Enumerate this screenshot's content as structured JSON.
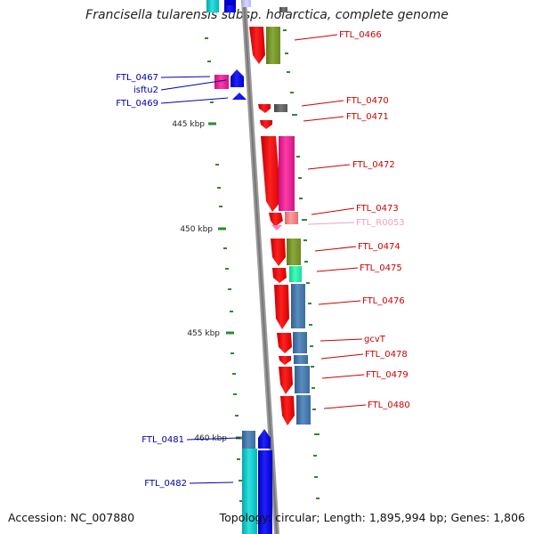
{
  "title": "Francisella tularensis subsp. holarctica, complete genome",
  "footer": {
    "accession": "Accession: NC_007880",
    "topology": "Topology: circular; Length: 1,895,994 bp; Genes: 1,806"
  },
  "scale_labels": [
    "445 kbp",
    "450 kbp",
    "455 kbp",
    "460 kbp"
  ],
  "colors": {
    "backbone": "#888888",
    "label_red": "#cc0000",
    "label_blue": "#0000aa",
    "label_pink": "#f0a0c0",
    "tick_green": "#2e8b2e"
  },
  "genes": [
    {
      "label": "FTL_0466",
      "strand": "+",
      "color": "#ff0000"
    },
    {
      "label": "FTL_0467",
      "strand": "-",
      "color": "#ff1493"
    },
    {
      "label": "isftu2",
      "strand": "-",
      "color": "#0000ff"
    },
    {
      "label": "FTL_0469",
      "strand": "-",
      "color": "#0000ff"
    },
    {
      "label": "FTL_0470",
      "strand": "+",
      "color": "#ff0000"
    },
    {
      "label": "FTL_0471",
      "strand": "+",
      "color": "#ff0000"
    },
    {
      "label": "FTL_0472",
      "strand": "+",
      "color": "#ff0000"
    },
    {
      "label": "FTL_0473",
      "strand": "+",
      "color": "#ff0000"
    },
    {
      "label": "FTL_R0053",
      "strand": "+",
      "color": "#f08080"
    },
    {
      "label": "FTL_0474",
      "strand": "+",
      "color": "#ff0000"
    },
    {
      "label": "FTL_0475",
      "strand": "+",
      "color": "#ff0000"
    },
    {
      "label": "FTL_0476",
      "strand": "+",
      "color": "#ff0000"
    },
    {
      "label": "gcvT",
      "strand": "+",
      "color": "#ff0000"
    },
    {
      "label": "FTL_0478",
      "strand": "+",
      "color": "#ff0000"
    },
    {
      "label": "FTL_0479",
      "strand": "+",
      "color": "#ff0000"
    },
    {
      "label": "FTL_0480",
      "strand": "+",
      "color": "#ff0000"
    },
    {
      "label": "FTL_0481",
      "strand": "-",
      "color": "#0000ff"
    },
    {
      "label": "FTL_0482",
      "strand": "-",
      "color": "#0000ff"
    }
  ]
}
